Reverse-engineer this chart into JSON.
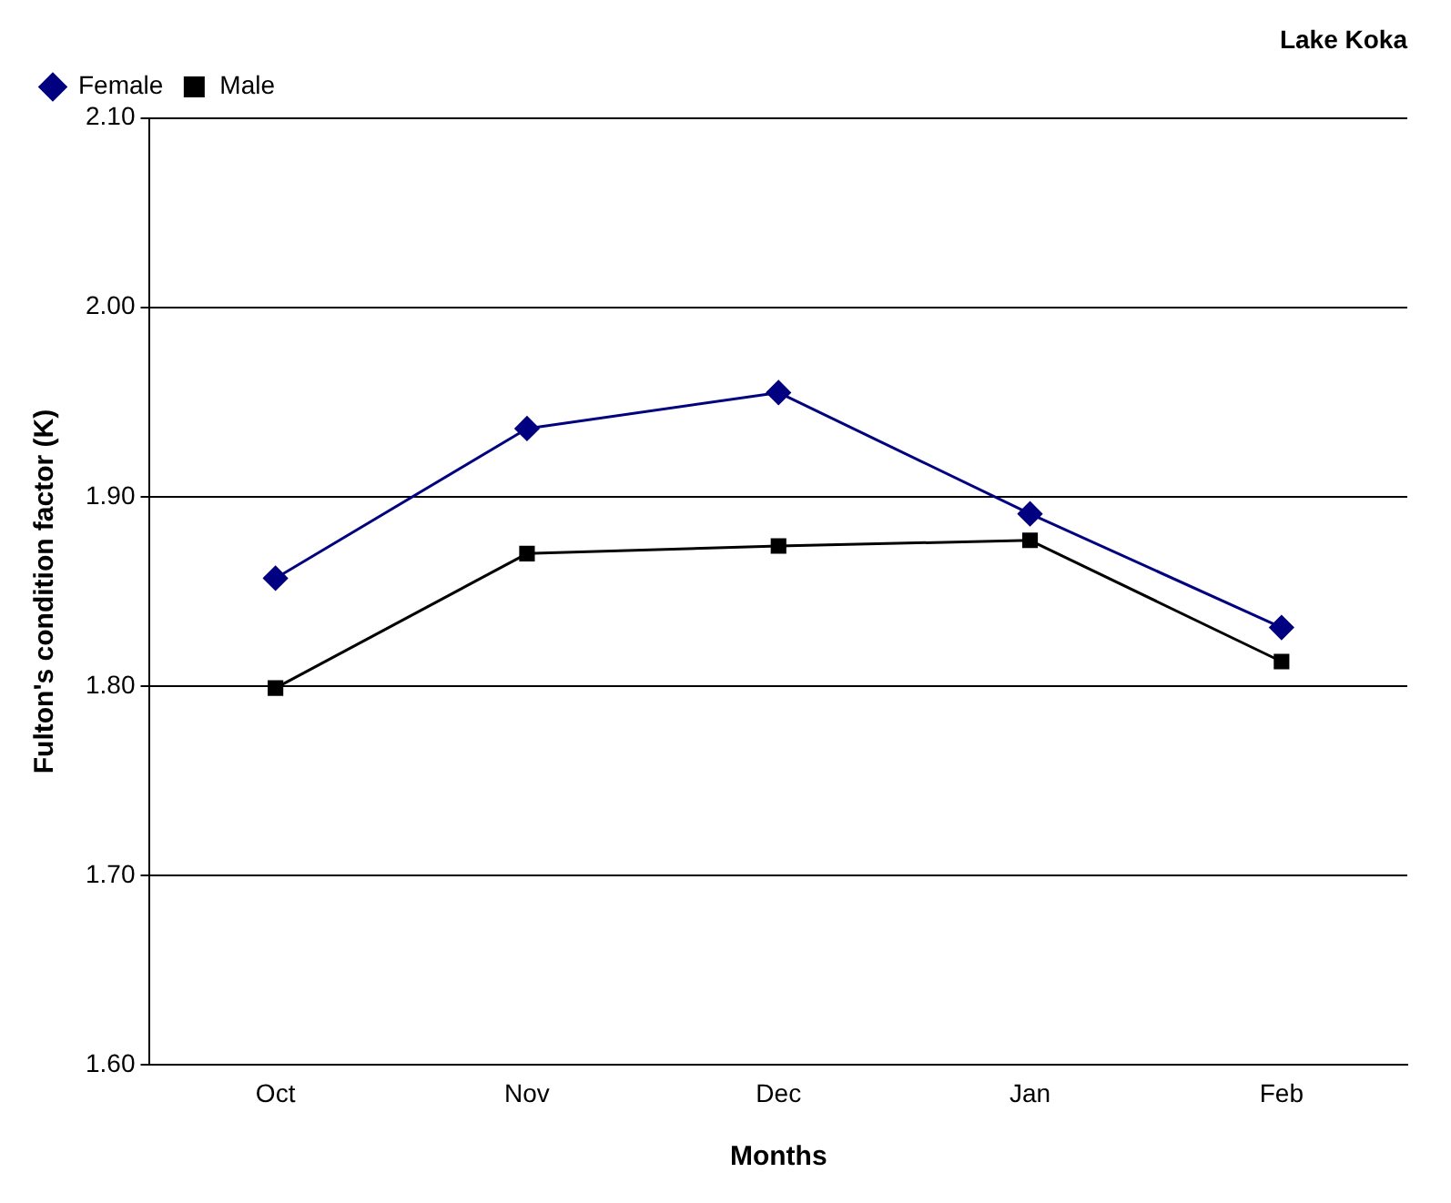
{
  "chart_data": {
    "type": "line",
    "title": "Lake Koka",
    "xlabel": "Months",
    "ylabel": "Fulton's condition factor (K)",
    "categories": [
      "Oct",
      "Nov",
      "Dec",
      "Jan",
      "Feb"
    ],
    "series": [
      {
        "name": "Female",
        "color": "#000080",
        "marker": "diamond",
        "values": [
          1.857,
          1.936,
          1.955,
          1.891,
          1.831
        ]
      },
      {
        "name": "Male",
        "color": "#000000",
        "marker": "square",
        "values": [
          1.799,
          1.87,
          1.874,
          1.877,
          1.813
        ]
      }
    ],
    "ylim": [
      1.6,
      2.1
    ],
    "yticks": [
      {
        "value": 1.6,
        "label": "1.60"
      },
      {
        "value": 1.7,
        "label": "1.70"
      },
      {
        "value": 1.8,
        "label": "1.80"
      },
      {
        "value": 1.9,
        "label": "1.90"
      },
      {
        "value": 2.0,
        "label": "2.00"
      },
      {
        "value": 2.1,
        "label": "2.10"
      }
    ],
    "grid": "y",
    "legend": "top",
    "line_style": "solid"
  }
}
